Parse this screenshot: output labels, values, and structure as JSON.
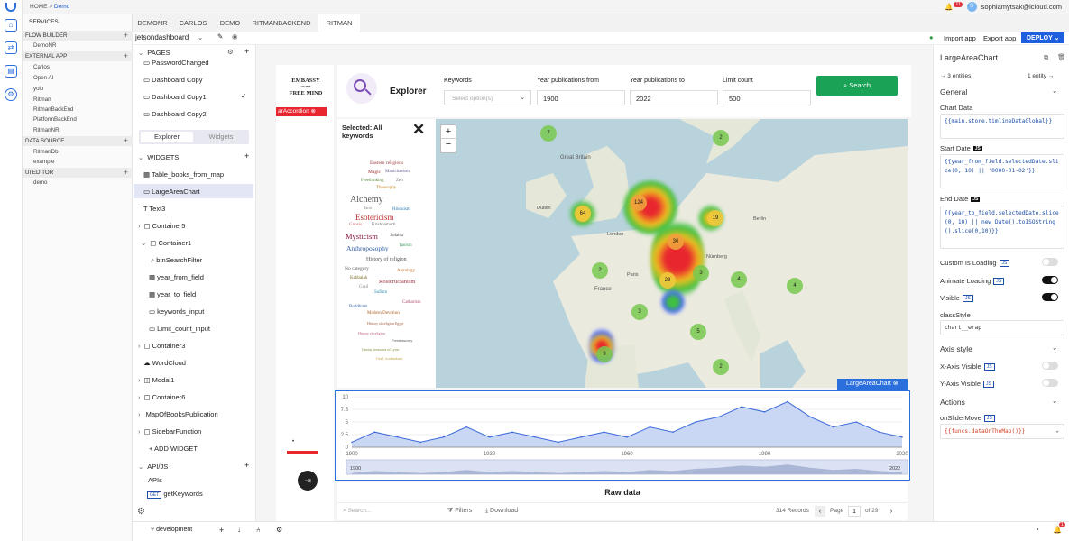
{
  "breadcrumb": {
    "home": "HOME >",
    "current": "Demo"
  },
  "user": {
    "notifications": "11",
    "initial": "S",
    "email": "sophiamytsak@icloud.com"
  },
  "sidebar": {
    "services": "SERVICES",
    "flow_builder": {
      "label": "FLOW BUILDER",
      "items": [
        "DemoNR"
      ]
    },
    "external_app": {
      "label": "EXTERNAL APP",
      "items": [
        "Carlos",
        "Open AI",
        "yolo",
        "Ritman",
        "RitmanBackEnd",
        "PlatformBackEnd",
        "RitmanNR"
      ]
    },
    "data_source": {
      "label": "DATA SOURCE",
      "items": [
        "RitmanDb",
        "example"
      ]
    },
    "ui_editor": {
      "label": "UI EDITOR",
      "items": [
        "demo"
      ]
    }
  },
  "tabs": [
    "DEMONR",
    "CARLOS",
    "DEMO",
    "RITMANBACKEND",
    "RITMAN"
  ],
  "toolbar": {
    "app_name": "jetsondashboard",
    "import": "Import app",
    "export": "Export app",
    "deploy": "DEPLOY"
  },
  "pages": {
    "title": "PAGES",
    "items": [
      "PasswordChanged",
      "Dashboard Copy",
      "Dashboard Copy1",
      "Dashboard Copy2"
    ],
    "toggle": [
      "Explorer",
      "Widgets"
    ]
  },
  "widgets": {
    "title": "WIDGETS",
    "items": [
      "Table_books_from_map",
      "LargeAreaChart",
      "Text3",
      "Container5",
      "Container1",
      "btnSearchFilter",
      "year_from_field",
      "year_to_field",
      "keywords_input",
      "Limit_count_input",
      "Container3",
      "WordCloud",
      "Modal1",
      "Container6",
      "MapOfBooksPublication",
      "SidebarFunction"
    ],
    "add": "+ ADD WIDGET"
  },
  "apijs": {
    "title": "API/JS",
    "apis": "APIs",
    "get_badge": "GET",
    "endpoint": "getKeywords"
  },
  "app": {
    "logo_lines": [
      "EMBASSY",
      "OF THE",
      "FREE MIND"
    ],
    "accordion_chip": "arAccordion",
    "explorer": "Explorer",
    "keywords_label": "Keywords",
    "keywords_placeholder": "Select option(s)",
    "year_from_label": "Year publications from",
    "year_from_value": "1900",
    "year_to_label": "Year publications to",
    "year_to_value": "2022",
    "limit_label": "Limit count",
    "limit_value": "500",
    "search": "Search",
    "selected_label": "Selected: All keywords",
    "map_credit": "LargeAreaChart",
    "raw_data": "Raw data",
    "search_placeholder": "Search...",
    "filters": "Filters",
    "download": "Download",
    "records": "314 Records",
    "page_label": "Page",
    "page_value": "1",
    "of_pages": "of 29",
    "clusters": [
      "7",
      "2",
      "124",
      "64",
      "19",
      "30",
      "2",
      "3",
      "28",
      "4",
      "4",
      "3",
      "5",
      "9",
      "2"
    ],
    "map_labels": [
      "Dublin",
      "Great Britain",
      "London",
      "Paris",
      "France",
      "Berlin",
      "Nürnberg"
    ]
  },
  "wordcloud": [
    {
      "t": "Eastern religions",
      "c": "#a04040"
    },
    {
      "t": "Magic",
      "c": "#9b2d2d"
    },
    {
      "t": "Manichaeism",
      "c": "#6a5a9a"
    },
    {
      "t": "Freethinking",
      "c": "#5a8a3a"
    },
    {
      "t": "Zen",
      "c": "#777"
    },
    {
      "t": "Theosophy",
      "c": "#c08020"
    },
    {
      "t": "Alchemy",
      "c": "#555"
    },
    {
      "t": "Tarot",
      "c": "#888"
    },
    {
      "t": "Hinduism",
      "c": "#2a7ab0"
    },
    {
      "t": "Esotericism",
      "c": "#c03030"
    },
    {
      "t": "Gnosis",
      "c": "#c06060"
    },
    {
      "t": "Krishnamurti",
      "c": "#666"
    },
    {
      "t": "Mysticism",
      "c": "#8a1a3a"
    },
    {
      "t": "Judaica",
      "c": "#555"
    },
    {
      "t": "Anthroposophy",
      "c": "#2a5aa0"
    },
    {
      "t": "Taoism",
      "c": "#3a9a5a"
    },
    {
      "t": "History of religion",
      "c": "#555"
    },
    {
      "t": "No category",
      "c": "#666"
    },
    {
      "t": "Astrology",
      "c": "#c07030"
    },
    {
      "t": "Kabbalah",
      "c": "#7a6a20"
    },
    {
      "t": "Rosicrucianism",
      "c": "#a03040"
    },
    {
      "t": "Grail",
      "c": "#888"
    },
    {
      "t": "Sufism",
      "c": "#2a8ab0"
    },
    {
      "t": "Catharism",
      "c": "#b05070"
    },
    {
      "t": "Buddhism",
      "c": "#2a5a9a"
    },
    {
      "t": "Modern Devotion",
      "c": "#b06020"
    },
    {
      "t": "History of religion Egypt",
      "c": "#a06040"
    },
    {
      "t": "History of religion",
      "c": "#c06080"
    },
    {
      "t": "Freemasonry",
      "c": "#555"
    },
    {
      "t": "Gnosis, treasures of Lyon",
      "c": "#7a8a30"
    },
    {
      "t": "Grail, troubadours",
      "c": "#c0a040"
    }
  ],
  "chart_data": {
    "type": "area",
    "ylim": [
      0,
      10
    ],
    "yticks": [
      "0",
      "2.5",
      "5",
      "7.5",
      "10"
    ],
    "xticks": [
      "1900",
      "1930",
      "1960",
      "1990",
      "2020"
    ],
    "x": [
      1900,
      1905,
      1910,
      1915,
      1920,
      1925,
      1930,
      1935,
      1940,
      1945,
      1950,
      1955,
      1960,
      1965,
      1970,
      1975,
      1980,
      1985,
      1990,
      1995,
      2000,
      2005,
      2010,
      2015,
      2020
    ],
    "values": [
      1,
      3,
      2,
      1,
      2,
      4,
      2,
      3,
      2,
      1,
      2,
      3,
      2,
      4,
      3,
      5,
      6,
      8,
      7,
      9,
      6,
      4,
      5,
      3,
      2
    ],
    "slider_labels": [
      "1900",
      "2022"
    ]
  },
  "props": {
    "title": "LargeAreaChart",
    "entities": "→ 3 entities",
    "entity": "1 entity →",
    "general": "General",
    "chart_data_label": "Chart Data",
    "chart_data_code": "{{main.store.timlineDataGlobal}}",
    "start_date_label": "Start Date",
    "start_date_code": "{{year_from_field.selectedDate.slice(0, 10) || '0000-01-02'}}",
    "end_date_label": "End Date",
    "end_date_code": "{{year_to_field.selectedDate.slice(0, 10) || new Date().toISOString().slice(0,10)}}",
    "custom_loading": "Custom Is Loading",
    "animate_loading": "Animate Loading",
    "visible": "Visible",
    "class_style": "classStyle",
    "class_value": "chart__wrap",
    "axis_style": "Axis style",
    "x_axis": "X-Axis Visible",
    "y_axis": "Y-Axis Visible",
    "actions": "Actions",
    "on_slider": "onSliderMove",
    "on_slider_code": "{{funcs.dataOnTheMap()}}",
    "js": "JS"
  },
  "bottom": {
    "branch": "development",
    "notif": "1"
  }
}
